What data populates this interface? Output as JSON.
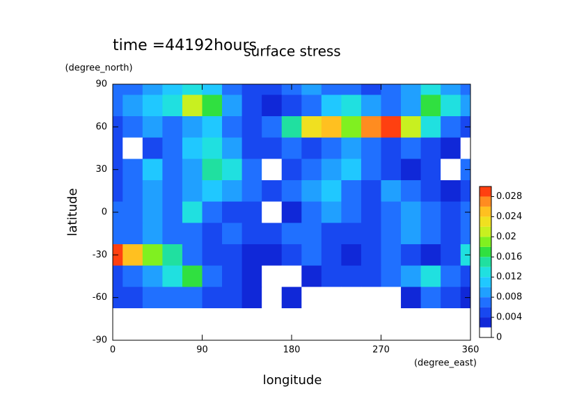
{
  "chart_data": {
    "type": "contour",
    "title": "surface stress",
    "subtitle": "time =44192hours",
    "x_label": "longitude",
    "x_unit": "(degree_east)",
    "y_label": "latitude",
    "y_unit": "(degree_north)",
    "x": [
      0,
      20,
      40,
      60,
      80,
      100,
      120,
      140,
      160,
      180,
      200,
      220,
      240,
      260,
      280,
      300,
      320,
      340,
      360
    ],
    "y": [
      90,
      75,
      60,
      45,
      30,
      15,
      0,
      -15,
      -30,
      -45,
      -60,
      -75,
      -90
    ],
    "values": [
      [
        0.006,
        0.006,
        0.008,
        0.01,
        0.012,
        0.01,
        0.006,
        0.004,
        0.004,
        0.006,
        0.008,
        0.006,
        0.006,
        0.004,
        0.006,
        0.008,
        0.012,
        0.008,
        0.006
      ],
      [
        0.006,
        0.008,
        0.01,
        0.012,
        0.02,
        0.016,
        0.008,
        0.004,
        0.002,
        0.004,
        0.006,
        0.01,
        0.012,
        0.008,
        0.006,
        0.008,
        0.016,
        0.012,
        0.008
      ],
      [
        0.004,
        0.006,
        0.008,
        0.006,
        0.008,
        0.01,
        0.006,
        0.004,
        0.006,
        0.014,
        0.022,
        0.024,
        0.018,
        0.026,
        0.028,
        0.02,
        0.012,
        0.006,
        0.004
      ],
      [
        0.004,
        0,
        0.004,
        0.006,
        0.01,
        0.012,
        0.008,
        0.004,
        0.004,
        0.006,
        0.004,
        0.006,
        0.008,
        0.006,
        0.004,
        0.006,
        0.004,
        0.002,
        0
      ],
      [
        0.004,
        0.006,
        0.01,
        0.006,
        0.008,
        0.014,
        0.012,
        0.006,
        0,
        0.004,
        0.006,
        0.008,
        0.01,
        0.006,
        0.004,
        0.002,
        0.004,
        0,
        0.006
      ],
      [
        0.004,
        0.006,
        0.008,
        0.006,
        0.008,
        0.01,
        0.008,
        0.006,
        0.004,
        0.006,
        0.008,
        0.01,
        0.006,
        0.004,
        0.008,
        0.006,
        0.004,
        0.002,
        0.004
      ],
      [
        0.006,
        0.006,
        0.008,
        0.006,
        0.012,
        0.006,
        0.004,
        0.004,
        0,
        0.002,
        0.006,
        0.008,
        0.006,
        0.004,
        0.006,
        0.008,
        0.006,
        0.004,
        0.006
      ],
      [
        0.006,
        0.006,
        0.008,
        0.006,
        0.006,
        0.004,
        0.006,
        0.004,
        0.004,
        0.006,
        0.006,
        0.004,
        0.004,
        0.004,
        0.006,
        0.008,
        0.006,
        0.004,
        0.006
      ],
      [
        0.028,
        0.024,
        0.018,
        0.014,
        0.006,
        0.004,
        0.004,
        0.002,
        0.002,
        0.004,
        0.006,
        0.004,
        0.002,
        0.004,
        0.006,
        0.004,
        0.002,
        0.004,
        0.012
      ],
      [
        0.004,
        0.006,
        0.008,
        0.012,
        0.016,
        0.006,
        0.004,
        0.002,
        0,
        0,
        0.002,
        0.004,
        0.004,
        0.004,
        0.006,
        0.008,
        0.012,
        0.006,
        0.004
      ],
      [
        0.004,
        0.004,
        0.006,
        0.006,
        0.006,
        0.004,
        0.004,
        0.002,
        0,
        0.002,
        0,
        0,
        0,
        0,
        0,
        0.002,
        0.006,
        0.004,
        0.002
      ],
      [
        0,
        0,
        0,
        0,
        0,
        0,
        0,
        0,
        0,
        0,
        0,
        0,
        0,
        0,
        0,
        0,
        0,
        0,
        0
      ],
      [
        0,
        0,
        0,
        0,
        0,
        0,
        0,
        0,
        0,
        0,
        0,
        0,
        0,
        0,
        0,
        0,
        0,
        0,
        0
      ]
    ],
    "xlim": [
      0,
      360
    ],
    "xticks": [
      0,
      90,
      180,
      270,
      360
    ],
    "ylim": [
      -90,
      90
    ],
    "yticks": [
      -90,
      -60,
      -30,
      0,
      30,
      60,
      90
    ],
    "levels": [
      0,
      0.002,
      0.004,
      0.006,
      0.008,
      0.01,
      0.012,
      0.014,
      0.016,
      0.018,
      0.02,
      0.022,
      0.024,
      0.026,
      0.028,
      0.03
    ],
    "colors": [
      "#ffffff",
      "#1028d8",
      "#1848f0",
      "#2070ff",
      "#20a0ff",
      "#20c8ff",
      "#20e0e0",
      "#20e0a0",
      "#30e040",
      "#80f020",
      "#c8f020",
      "#f0e020",
      "#ffc020",
      "#ff8c20",
      "#ff4010"
    ],
    "colorbar_ticks": [
      0,
      0.004,
      0.008,
      0.012,
      0.016,
      0.02,
      0.024,
      0.028
    ]
  }
}
